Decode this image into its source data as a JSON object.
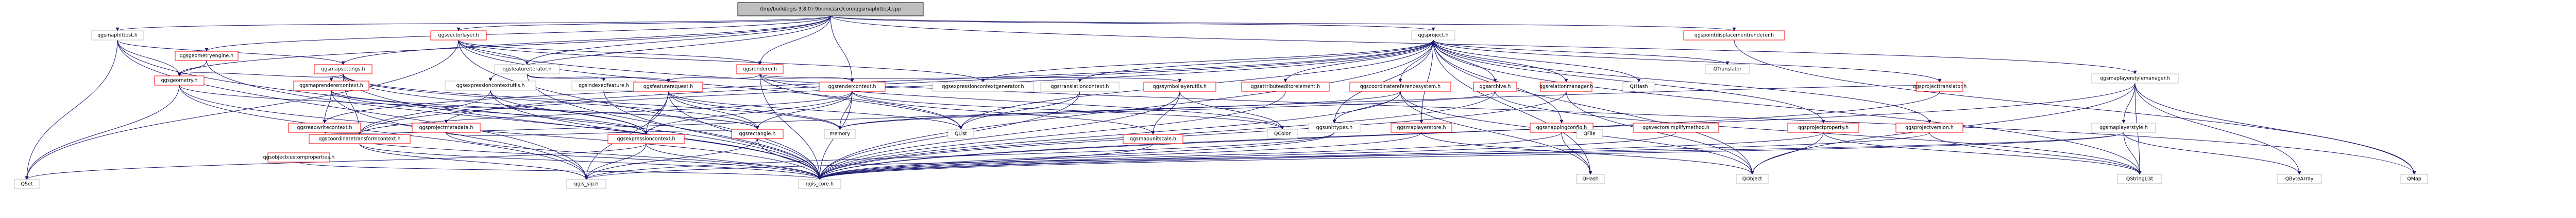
{
  "diagram": {
    "colors": {
      "edge": "#191970",
      "root_fill": "#bfbfbf",
      "plain_border": "#bfbfbf",
      "plain_text": "#000000",
      "link_border": "#ff0000",
      "link_text": "#000000"
    },
    "nodes": [
      {
        "id": "root",
        "label": "/tmp/build/qgis-3.8.0+9bionic/src/core/qgsmaphittest.cpp",
        "style": "root"
      },
      {
        "id": "qgsmaphittest_h",
        "label": "qgsmaphittest.h",
        "style": "plain"
      },
      {
        "id": "qgsvectorlayer_h",
        "label": "qgsvectorlayer.h",
        "style": "link"
      },
      {
        "id": "qgsproject_h",
        "label": "qgsproject.h",
        "style": "plain"
      },
      {
        "id": "qgspointdisplacementrenderer_h",
        "label": "qgspointdisplacementrenderer.h",
        "style": "link"
      },
      {
        "id": "qgsmaplayerstylemanager_h",
        "label": "qgsmaplayerstylemanager.h",
        "style": "plain"
      },
      {
        "id": "qgsgeometryengine_h",
        "label": "qgsgeometryengine.h",
        "style": "link"
      },
      {
        "id": "qgsmapsettings_h",
        "label": "qgsmapsettings.h",
        "style": "link"
      },
      {
        "id": "qgsfeatureiterator_h",
        "label": "qgsfeatureiterator.h",
        "style": "plain"
      },
      {
        "id": "qgsrenderer_h",
        "label": "qgsrenderer.h",
        "style": "link"
      },
      {
        "id": "qgsgeometry_h",
        "label": "qgsgeometry.h",
        "style": "link"
      },
      {
        "id": "qgsmaptocontext_h",
        "label": "qgsmaprenderercontext.h",
        "style": "link"
      },
      {
        "id": "qgsexpressioncontextutils_h",
        "label": "qgsexpressioncontextutils.h",
        "style": "plain"
      },
      {
        "id": "qgsindexedfeature_h",
        "label": "qgsindexedfeature.h",
        "style": "plain"
      },
      {
        "id": "qgsfeaturerequest_h",
        "label": "qgsfeaturerequest.h",
        "style": "link"
      },
      {
        "id": "qgsrendercontext_h",
        "label": "qgsrendercontext.h",
        "style": "link"
      },
      {
        "id": "qgsexpressioncontextgenerator_h",
        "label": "qgsexpressioncontextgenerator.h",
        "style": "plain"
      },
      {
        "id": "qgstranslationcontext_h",
        "label": "qgstranslationcontext.h",
        "style": "plain"
      },
      {
        "id": "qgssymbollayerutils_h",
        "label": "qgssymbollayerutils.h",
        "style": "link"
      },
      {
        "id": "qgsattributeeditorelement_h",
        "label": "qgsattributeeditorelement.h",
        "style": "link"
      },
      {
        "id": "qgscoordinatereferencesystem_h",
        "label": "qgscoordinatereferencesystem.h",
        "style": "link"
      },
      {
        "id": "qgsarchive_h",
        "label": "qgsarchive.h",
        "style": "link"
      },
      {
        "id": "qgsrelationmanager_h",
        "label": "qgsrelationmanager.h",
        "style": "link"
      },
      {
        "id": "qgslayertreenode_h",
        "label": "QtHash",
        "style": "plain"
      },
      {
        "id": "qgsprojectstylesettings_h",
        "label": "QTranslator",
        "style": "plain"
      },
      {
        "id": "qgsprojecttranslator_h",
        "label": "qgsprojecttranslator.h",
        "style": "link"
      },
      {
        "id": "qgsmaplayerstore_h",
        "label": "qgsmaplayerstore.h",
        "style": "link"
      },
      {
        "id": "qgsunittypes_h",
        "label": "qgsunittypes.h",
        "style": "plain"
      },
      {
        "id": "qgssnappingconfig_h",
        "label": "qgssnappingconfig.h",
        "style": "link"
      },
      {
        "id": "qgsvectorsimplifymethod_h",
        "label": "qgsvectorsimplifymethod.h",
        "style": "link"
      },
      {
        "id": "qgsprojectproperty_h",
        "label": "qgsprojectproperty.h",
        "style": "link"
      },
      {
        "id": "qgsprojectversion_h",
        "label": "qgsprojectversion.h",
        "style": "link"
      },
      {
        "id": "qgsmaplayerstyle_h",
        "label": "qgsmaplayerstyle.h",
        "style": "plain"
      },
      {
        "id": "qgsreadwritecontext_h",
        "label": "qgsreadwritecontext.h",
        "style": "link"
      },
      {
        "id": "qgsprojectmetadata_h",
        "label": "qgsprojectmetadata.h",
        "style": "link"
      },
      {
        "id": "qgscoordinatetransformcontext_h",
        "label": "qgscoordinatetransformcontext.h",
        "style": "link"
      },
      {
        "id": "qgsexpressioncontext_h",
        "label": "qgsexpressioncontext.h",
        "style": "link"
      },
      {
        "id": "qgsrectangle_h",
        "label": "qgsrectangle.h",
        "style": "link"
      },
      {
        "id": "qgsmapunitscale_h",
        "label": "qgsmapunitscale.h",
        "style": "link"
      },
      {
        "id": "qgsobjectcustomproperties_h",
        "label": "qgsobjectcustomproperties.h",
        "style": "link"
      },
      {
        "id": "QSet",
        "label": "QSet",
        "style": "plain"
      },
      {
        "id": "qgis_sip_h",
        "label": "qgis_sip.h",
        "style": "plain"
      },
      {
        "id": "qgis_core_h",
        "label": "qgis_core.h",
        "style": "plain"
      },
      {
        "id": "memory",
        "label": "memory",
        "style": "plain"
      },
      {
        "id": "QList",
        "label": "QList",
        "style": "plain"
      },
      {
        "id": "QColor",
        "label": "QColor",
        "style": "plain"
      },
      {
        "id": "QFile",
        "label": "QFile",
        "style": "plain"
      },
      {
        "id": "QObject",
        "label": "QObject",
        "style": "plain"
      },
      {
        "id": "QHash",
        "label": "QHash",
        "style": "plain"
      },
      {
        "id": "QStringList",
        "label": "QStringList",
        "style": "plain"
      },
      {
        "id": "QByteArray",
        "label": "QByteArray",
        "style": "plain"
      },
      {
        "id": "QMap",
        "label": "QMap",
        "style": "plain"
      }
    ]
  }
}
